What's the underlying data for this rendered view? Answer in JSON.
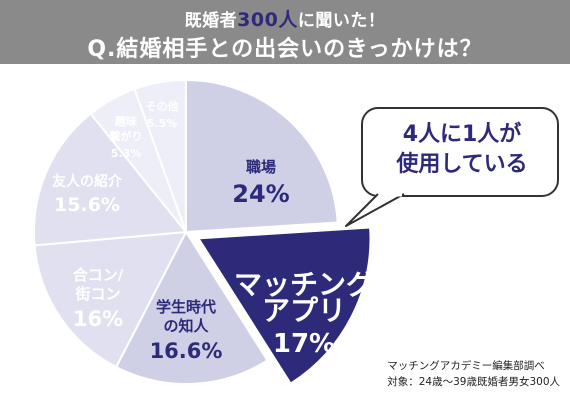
{
  "header": {
    "subtitle_pre": "既婚者",
    "subtitle_num": "300人",
    "subtitle_post": "に聞いた！",
    "title": "Q.結婚相手との出会いのきっかけは？"
  },
  "callout": {
    "line1": "4人に1人が",
    "line2": "使用している"
  },
  "source": {
    "line1": "マッチングアカデミー編集部調べ",
    "line2": "対象：24歳〜39歳既婚者男女300人"
  },
  "colors": {
    "header": "#8a8a8a",
    "accent": "#2d2a7a",
    "highlight_slice": "#2d2a7a",
    "slice_light": "#eeeef8",
    "slice_mid": "#e0e0f0",
    "slice_dark": "#cfcfe6"
  },
  "chart_data": {
    "type": "pie",
    "start_angle_deg": -90,
    "direction": "clockwise",
    "slices": [
      {
        "label_lines": [
          "職場"
        ],
        "value": 24,
        "value_text": "24%",
        "color": "#cfcfe6",
        "highlight": false
      },
      {
        "label_lines": [
          "マッチング",
          "アプリ"
        ],
        "value": 17,
        "value_text": "17%",
        "color": "#2d2a7a",
        "highlight": true
      },
      {
        "label_lines": [
          "学生時代",
          "の知人"
        ],
        "value": 16.6,
        "value_text": "16.6%",
        "color": "#cfcfe6",
        "highlight": false
      },
      {
        "label_lines": [
          "合コン/",
          "街コン"
        ],
        "value": 16,
        "value_text": "16%",
        "color": "#e0e0f0",
        "highlight": false
      },
      {
        "label_lines": [
          "友人の紹介"
        ],
        "value": 15.6,
        "value_text": "15.6%",
        "color": "#e0e0f0",
        "highlight": false
      },
      {
        "label_lines": [
          "趣味",
          "繋がり"
        ],
        "value": 5.3,
        "value_text": "5.3%",
        "color": "#eeeef8",
        "highlight": false
      },
      {
        "label_lines": [
          "その他"
        ],
        "value": 5.5,
        "value_text": "5.5%",
        "color": "#eeeef8",
        "highlight": false
      }
    ]
  }
}
